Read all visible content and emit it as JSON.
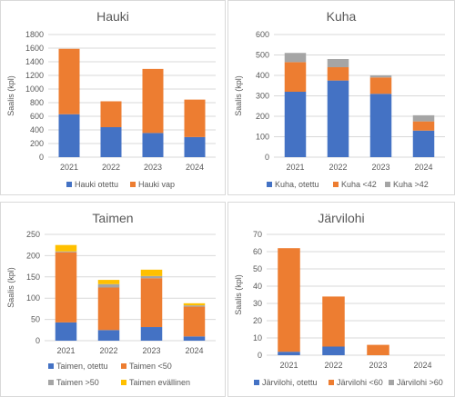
{
  "chart_data": [
    {
      "type": "bar",
      "stacked": true,
      "title": "Hauki",
      "ylabel": "Saalis (kpl)",
      "ylim": [
        0,
        1800
      ],
      "yticks": [
        0,
        200,
        400,
        600,
        800,
        1000,
        1200,
        1400,
        1600,
        1800
      ],
      "categories": [
        "2021",
        "2022",
        "2023",
        "2024"
      ],
      "grid": true,
      "legend": "bottom",
      "series": [
        {
          "name": "Hauki otettu",
          "color": "#4472c4",
          "values": [
            630,
            440,
            355,
            295
          ]
        },
        {
          "name": "Hauki vap",
          "color": "#ed7d31",
          "values": [
            960,
            380,
            940,
            550
          ]
        }
      ]
    },
    {
      "type": "bar",
      "stacked": true,
      "title": "Kuha",
      "ylabel": "Saalis (kpl)",
      "ylim": [
        0,
        600
      ],
      "yticks": [
        0,
        100,
        200,
        300,
        400,
        500,
        600
      ],
      "categories": [
        "2021",
        "2022",
        "2023",
        "2024"
      ],
      "grid": true,
      "legend": "bottom",
      "series": [
        {
          "name": "Kuha, otettu",
          "color": "#4472c4",
          "values": [
            320,
            375,
            310,
            130
          ]
        },
        {
          "name": "Kuha <42",
          "color": "#ed7d31",
          "values": [
            145,
            65,
            80,
            45
          ]
        },
        {
          "name": "Kuha >42",
          "color": "#a5a5a5",
          "values": [
            45,
            40,
            10,
            30
          ]
        }
      ]
    },
    {
      "type": "bar",
      "stacked": true,
      "title": "Taimen",
      "ylabel": "Saalis (kpl)",
      "ylim": [
        0,
        250
      ],
      "yticks": [
        0,
        50,
        100,
        150,
        200,
        250
      ],
      "categories": [
        "2021",
        "2022",
        "2023",
        "2024"
      ],
      "grid": true,
      "legend": "bottom",
      "series": [
        {
          "name": "Taimen, otettu",
          "color": "#4472c4",
          "values": [
            43,
            25,
            32,
            10
          ]
        },
        {
          "name": "Taimen <50",
          "color": "#ed7d31",
          "values": [
            165,
            100,
            115,
            70
          ]
        },
        {
          "name": "Taimen >50",
          "color": "#a5a5a5",
          "values": [
            2,
            8,
            5,
            3
          ]
        },
        {
          "name": "Taimen evällinen",
          "color": "#ffc000",
          "values": [
            15,
            10,
            15,
            5
          ]
        }
      ]
    },
    {
      "type": "bar",
      "stacked": true,
      "title": "Järvilohi",
      "ylabel": "Saalis (kpl)",
      "ylim": [
        0,
        70
      ],
      "yticks": [
        0,
        10,
        20,
        30,
        40,
        50,
        60,
        70
      ],
      "categories": [
        "2021",
        "2022",
        "2023",
        "2024"
      ],
      "grid": true,
      "legend": "bottom",
      "series": [
        {
          "name": "Järvilohi, otettu",
          "color": "#4472c4",
          "values": [
            2,
            5,
            0,
            0
          ]
        },
        {
          "name": "Järvilohi <60",
          "color": "#ed7d31",
          "values": [
            60,
            29,
            6,
            0
          ]
        },
        {
          "name": "Järvilohi >60",
          "color": "#a5a5a5",
          "values": [
            0,
            0,
            0,
            0
          ]
        }
      ]
    }
  ]
}
